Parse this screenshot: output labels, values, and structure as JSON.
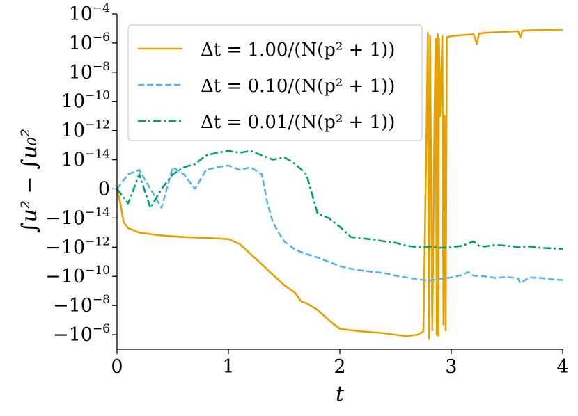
{
  "chart_data": {
    "type": "line",
    "xlabel": "t",
    "ylabel": "∫u² − ∫u₀²",
    "xlim": [
      0,
      4
    ],
    "yscale": "symlog",
    "symlog_linthresh": 1e-15,
    "ylim": [
      -1e-05,
      0.0001
    ],
    "x_ticks": [
      {
        "value": 0,
        "label": "0"
      },
      {
        "value": 1,
        "label": "1"
      },
      {
        "value": 2,
        "label": "2"
      },
      {
        "value": 3,
        "label": "3"
      },
      {
        "value": 4,
        "label": "4"
      }
    ],
    "y_ticks": [
      {
        "value": 0.0001,
        "base": "10",
        "exp": "−4"
      },
      {
        "value": 1e-06,
        "base": "10",
        "exp": "−6"
      },
      {
        "value": 1e-08,
        "base": "10",
        "exp": "−8"
      },
      {
        "value": 1e-10,
        "base": "10",
        "exp": "−10"
      },
      {
        "value": 1e-12,
        "base": "10",
        "exp": "−12"
      },
      {
        "value": 1e-14,
        "base": "10",
        "exp": "−14"
      },
      {
        "value": 0,
        "base": "0",
        "exp": ""
      },
      {
        "value": -1e-14,
        "base": "−10",
        "exp": "−14"
      },
      {
        "value": -1e-12,
        "base": "−10",
        "exp": "−12"
      },
      {
        "value": -1e-10,
        "base": "−10",
        "exp": "−10"
      },
      {
        "value": -1e-08,
        "base": "−10",
        "exp": "−8"
      },
      {
        "value": -1e-06,
        "base": "−10",
        "exp": "−6"
      }
    ],
    "legend_position": "top-right",
    "series": [
      {
        "name": "Δt = 1.00/(N(p² + 1))",
        "color": "#e6a000",
        "style": "solid",
        "x": [
          0.0,
          0.03,
          0.06,
          0.1,
          0.2,
          0.4,
          0.6,
          0.8,
          1.0,
          1.1,
          1.2,
          1.3,
          1.4,
          1.5,
          1.6,
          1.65,
          1.7,
          1.8,
          1.9,
          2.0,
          2.1,
          2.2,
          2.4,
          2.6,
          2.7,
          2.75,
          2.78,
          2.79,
          2.8,
          2.81,
          2.83,
          2.85,
          2.86,
          2.87,
          2.88,
          2.885,
          2.89,
          2.9,
          2.92,
          2.93,
          2.94,
          2.95,
          2.96,
          3.0,
          3.1,
          3.2,
          3.23,
          3.25,
          3.3,
          3.4,
          3.5,
          3.6,
          3.62,
          3.64,
          3.7,
          3.8,
          3.9,
          4.0
        ],
        "y": [
          0,
          -1e-15,
          -2e-14,
          -5e-14,
          -1e-13,
          -1.6e-13,
          -2e-13,
          -2.3e-13,
          -2.8e-13,
          -6e-13,
          -3e-12,
          -1.5e-11,
          -8e-11,
          -4e-10,
          -1.4e-09,
          -5e-09,
          -7e-09,
          -2e-08,
          -1e-07,
          -4e-07,
          -5e-07,
          -6e-07,
          -8e-07,
          -1.3e-06,
          -1e-06,
          -6e-07,
          1e-11,
          5e-06,
          -2e-06,
          3e-06,
          -5e-07,
          1e-11,
          2e-06,
          -1e-06,
          4e-06,
          -1.2e-06,
          2e-06,
          1e-11,
          3e-06,
          -2e-07,
          1e-11,
          -5e-07,
          2.5e-06,
          3e-06,
          3.5e-06,
          4e-06,
          9e-07,
          4.5e-06,
          5e-06,
          5.5e-06,
          6e-06,
          6.5e-06,
          2.5e-06,
          7e-06,
          7.5e-06,
          8e-06,
          8.3e-06,
          8.5e-06
        ]
      },
      {
        "name": "Δt = 0.10/(N(p² + 1))",
        "color": "#56b4e9",
        "style": "dashed",
        "x": [
          0.0,
          0.1,
          0.2,
          0.3,
          0.4,
          0.5,
          0.6,
          0.7,
          0.8,
          0.9,
          1.0,
          1.1,
          1.2,
          1.3,
          1.35,
          1.4,
          1.45,
          1.5,
          1.6,
          1.7,
          1.8,
          1.9,
          2.0,
          2.1,
          2.2,
          2.3,
          2.4,
          2.5,
          2.6,
          2.7,
          2.8,
          2.9,
          3.0,
          3.1,
          3.15,
          3.2,
          3.3,
          3.4,
          3.5,
          3.6,
          3.62,
          3.7,
          3.8,
          3.9,
          4.0
        ],
        "y": [
          0,
          1e-15,
          2e-15,
          0,
          -2e-15,
          3e-15,
          1e-15,
          0,
          2e-15,
          3e-15,
          4e-15,
          2e-15,
          3e-15,
          1e-15,
          -1e-15,
          -2e-14,
          -1e-13,
          -4e-13,
          -1.5e-12,
          -3e-12,
          -5e-12,
          -1e-11,
          -2e-11,
          -3e-11,
          -4e-11,
          -5e-11,
          -6e-11,
          -9e-11,
          -1.2e-10,
          -1.6e-10,
          -2e-10,
          -1.5e-10,
          -1.2e-10,
          -8e-11,
          -5e-11,
          -9e-11,
          -1e-10,
          -1.3e-10,
          -1.1e-10,
          -1.4e-10,
          -3e-10,
          -1.2e-10,
          -1.3e-10,
          -1.6e-10,
          -1.8e-10
        ]
      },
      {
        "name": "Δt = 0.01/(N(p² + 1))",
        "color": "#009e73",
        "style": "dashdot",
        "x": [
          0.0,
          0.1,
          0.2,
          0.3,
          0.4,
          0.5,
          0.6,
          0.7,
          0.8,
          0.9,
          1.0,
          1.1,
          1.2,
          1.3,
          1.4,
          1.5,
          1.6,
          1.7,
          1.8,
          1.9,
          2.0,
          2.1,
          2.2,
          2.3,
          2.4,
          2.5,
          2.6,
          2.7,
          2.8,
          2.9,
          3.0,
          3.1,
          3.2,
          3.25,
          3.3,
          3.4,
          3.5,
          3.6,
          3.7,
          3.8,
          3.9,
          4.0
        ],
        "y": [
          0,
          -1e-15,
          1e-15,
          -2e-15,
          0,
          1e-15,
          3e-15,
          5e-15,
          2e-14,
          3e-14,
          4e-14,
          3e-14,
          4e-14,
          2e-14,
          1e-14,
          1.5e-14,
          5e-15,
          1e-15,
          -5e-15,
          -1e-14,
          -4e-14,
          -2e-13,
          -2.5e-13,
          -3e-13,
          -4e-13,
          -5e-13,
          -8e-13,
          -1e-12,
          -9e-13,
          -1.1e-12,
          -1e-12,
          -8e-13,
          -4e-13,
          -8e-13,
          -9e-13,
          -7e-13,
          -8e-13,
          -1e-12,
          -9e-13,
          -1.1e-12,
          -1.2e-12,
          -1.3e-12
        ]
      }
    ]
  }
}
